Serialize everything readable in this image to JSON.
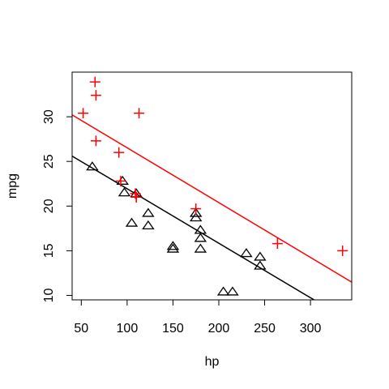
{
  "chart_data": {
    "type": "scatter",
    "xlabel": "hp",
    "ylabel": "mpg",
    "xlim": [
      40,
      345
    ],
    "ylim": [
      9.5,
      35
    ],
    "x_ticks": [
      50,
      100,
      150,
      200,
      250,
      300
    ],
    "y_ticks": [
      10,
      15,
      20,
      25,
      30
    ],
    "x_tick_labels": [
      "50",
      "100",
      "150",
      "200",
      "250",
      "300"
    ],
    "y_tick_labels": [
      "10",
      "15",
      "20",
      "25",
      "30"
    ],
    "grid": false,
    "series": [
      {
        "marker": "triangle",
        "color": "#000000",
        "points": [
          [
            62,
            24.4
          ],
          [
            95,
            22.8
          ],
          [
            97,
            21.5
          ],
          [
            105,
            18.1
          ],
          [
            110,
            21.4
          ],
          [
            123,
            19.2
          ],
          [
            123,
            17.8
          ],
          [
            150,
            15.5
          ],
          [
            150,
            15.2
          ],
          [
            175,
            19.2
          ],
          [
            175,
            18.7
          ],
          [
            180,
            17.3
          ],
          [
            180,
            16.4
          ],
          [
            180,
            15.2
          ],
          [
            205,
            10.4
          ],
          [
            215,
            10.4
          ],
          [
            230,
            14.7
          ],
          [
            245,
            14.3
          ],
          [
            245,
            13.3
          ]
        ],
        "fit": {
          "intercept": 28.04,
          "slope": -0.061
        }
      },
      {
        "marker": "plus",
        "color": "#ff0000",
        "points": [
          [
            52,
            30.4
          ],
          [
            65,
            33.9
          ],
          [
            66,
            32.4
          ],
          [
            66,
            27.3
          ],
          [
            91,
            26.0
          ],
          [
            93,
            22.8
          ],
          [
            109,
            21.4
          ],
          [
            110,
            21.0
          ],
          [
            110,
            21.0
          ],
          [
            113,
            30.4
          ],
          [
            175,
            19.7
          ],
          [
            264,
            15.8
          ],
          [
            335,
            15.0
          ]
        ],
        "fit": {
          "intercept": 32.67,
          "slope": -0.0614
        }
      }
    ]
  }
}
